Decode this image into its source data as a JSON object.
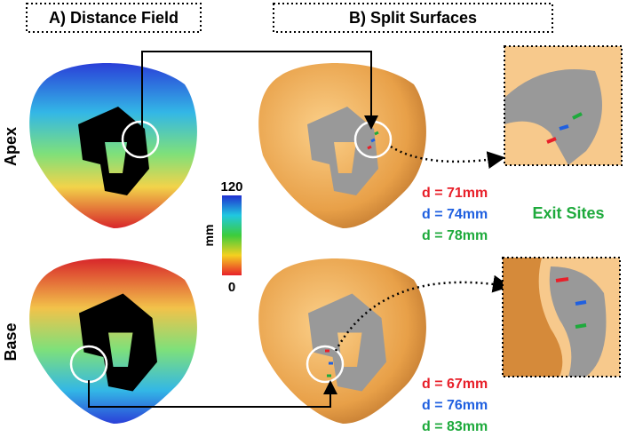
{
  "panels": [
    {
      "title": "A) Distance Field"
    },
    {
      "title": "B) Split Surfaces"
    }
  ],
  "rows": [
    {
      "label": "Apex",
      "distances": [
        {
          "text": "d = 71mm",
          "color": "#e8202a"
        },
        {
          "text": "d = 74mm",
          "color": "#2060e0"
        },
        {
          "text": "d = 78mm",
          "color": "#1eaa3c"
        }
      ]
    },
    {
      "label": "Base",
      "distances": [
        {
          "text": "d = 67mm",
          "color": "#e8202a"
        },
        {
          "text": "d = 76mm",
          "color": "#2060e0"
        },
        {
          "text": "d = 83mm",
          "color": "#1eaa3c"
        }
      ]
    }
  ],
  "colorbar": {
    "max": "120",
    "min": "0",
    "unit": "mm"
  },
  "exit_label": {
    "text": "Exit Sites",
    "color": "#1eaa3c"
  }
}
